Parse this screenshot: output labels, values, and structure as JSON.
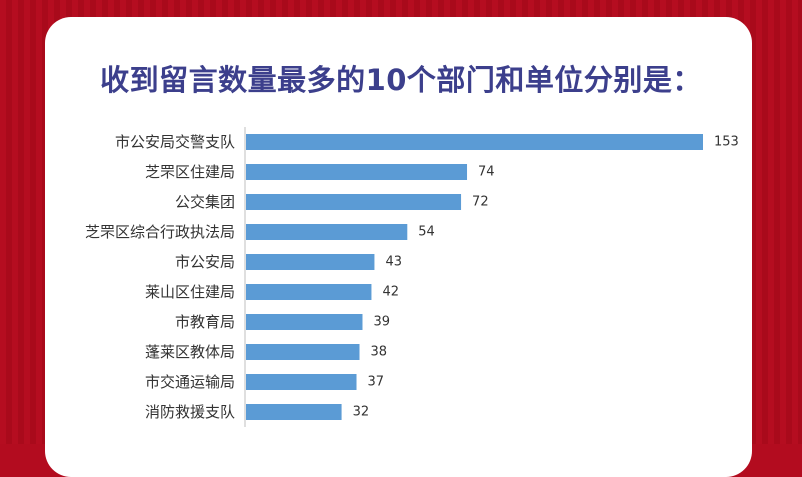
{
  "title": "收到留言数量最多的10个部门和单位分别是：",
  "colors": {
    "background": "#b30c1f",
    "card": "#ffffff",
    "title": "#3c3f8c",
    "bar": "#5b9bd5"
  },
  "chart_data": {
    "type": "bar",
    "orientation": "horizontal",
    "title": "收到留言数量最多的10个部门和单位分别是：",
    "categories": [
      "市公安局交警支队",
      "芝罘区住建局",
      "公交集团",
      "芝罘区综合行政执法局",
      "市公安局",
      "莱山区住建局",
      "市教育局",
      "蓬莱区教体局",
      "市交通运输局",
      "消防救援支队"
    ],
    "values": [
      153,
      74,
      72,
      54,
      43,
      42,
      39,
      38,
      37,
      32
    ],
    "xlim": [
      0,
      153
    ],
    "grid": false,
    "legend": "none",
    "data_labels": true
  }
}
